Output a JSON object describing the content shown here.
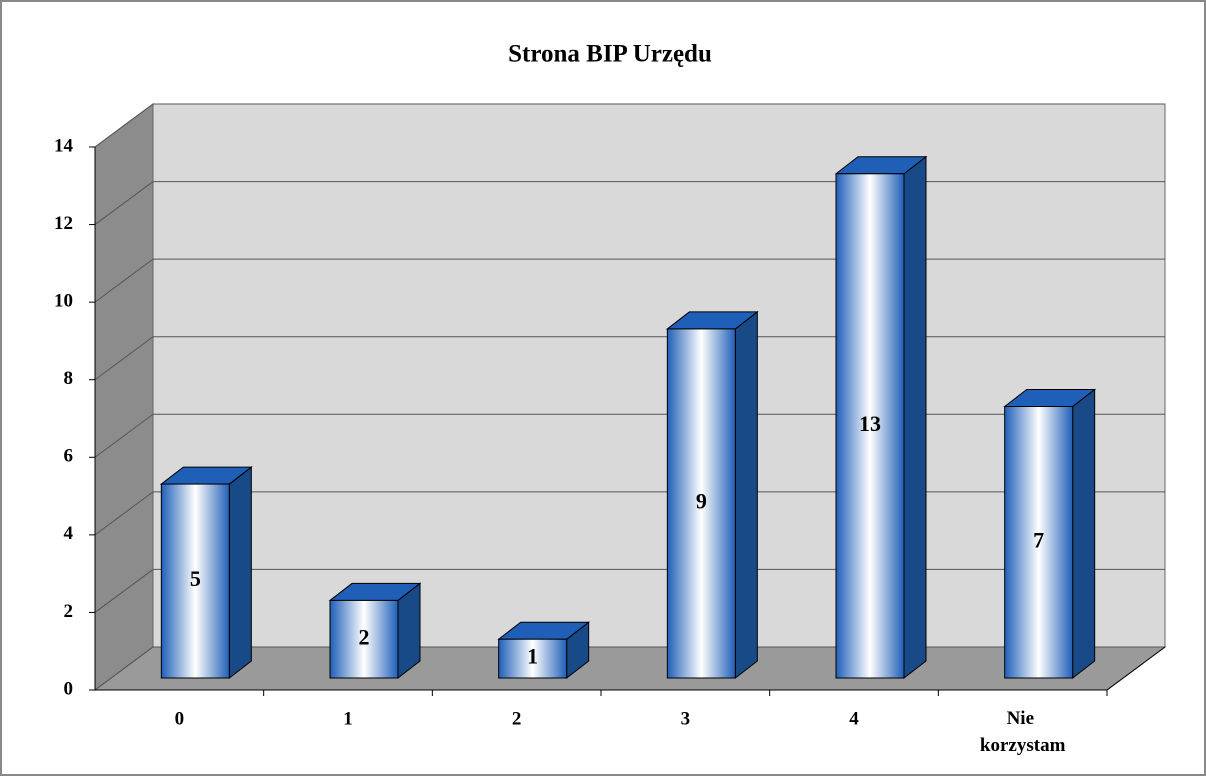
{
  "chart_data": {
    "type": "bar3d",
    "title": "Strona BIP Urzędu",
    "categories": [
      "0",
      "1",
      "2",
      "3",
      "4",
      "Nie korzystam"
    ],
    "values": [
      5,
      2,
      1,
      9,
      13,
      7
    ],
    "color": "#1f5fb8",
    "ylim": [
      0,
      14
    ],
    "yticks": [
      0,
      2,
      4,
      6,
      8,
      10,
      12,
      14
    ],
    "grid": true
  }
}
